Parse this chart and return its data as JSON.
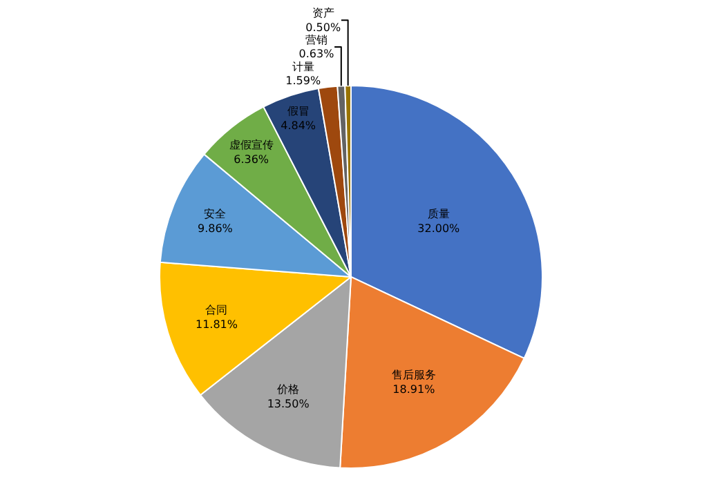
{
  "chart_data": {
    "type": "pie",
    "categories": [
      "质量",
      "售后服务",
      "价格",
      "合同",
      "安全",
      "虚假宣传",
      "假冒",
      "计量",
      "营销",
      "资产"
    ],
    "values": [
      32.0,
      18.91,
      13.5,
      11.81,
      9.86,
      6.36,
      4.84,
      1.59,
      0.63,
      0.5
    ],
    "colors": [
      "#4472c4",
      "#ed7d31",
      "#a5a5a5",
      "#ffc000",
      "#5b9bd5",
      "#70ad47",
      "#264478",
      "#9e480e",
      "#636363",
      "#997300"
    ],
    "value_labels": [
      "32.00%",
      "18.91%",
      "13.50%",
      "11.81%",
      "9.86%",
      "6.36%",
      "4.84%",
      "1.59%",
      "0.63%",
      "0.50%"
    ]
  }
}
